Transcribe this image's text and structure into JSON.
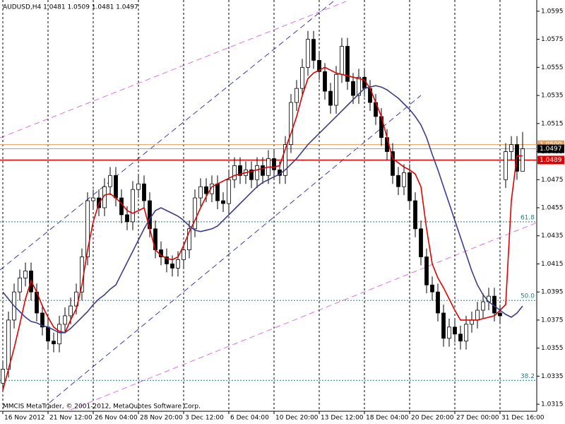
{
  "chart_data": {
    "type": "candlestick",
    "title": "AUDUSD,H4  1.0481 1.0509 1.0481 1.0497",
    "footer": "MMCIS MetaTrader, © 2001-2012, MetaQuotes Software Corp.",
    "categories": [
      "16 Nov 2012",
      null,
      null,
      null,
      null,
      null,
      null,
      null,
      "21 Nov 12:00",
      null,
      null,
      null,
      null,
      null,
      null,
      null,
      "26 Nov 04:00",
      null,
      null,
      null,
      null,
      null,
      null,
      null,
      "28 Nov 20:00",
      null,
      null,
      null,
      null,
      null,
      null,
      null,
      "3 Dec 12:00",
      null,
      null,
      null,
      null,
      null,
      null,
      null,
      "6 Dec 04:00",
      null,
      null,
      null,
      null,
      null,
      null,
      null,
      "10 Dec 20:00",
      null,
      null,
      null,
      null,
      null,
      null,
      null,
      "13 Dec 12:00",
      null,
      null,
      null,
      null,
      null,
      null,
      null,
      "18 Dec 04:00",
      null,
      null,
      null,
      null,
      null,
      null,
      null,
      "20 Dec 20:00",
      null,
      null,
      null,
      null,
      null,
      null,
      null,
      "27 Dec 00:00",
      null,
      null,
      null,
      null,
      null,
      null,
      null,
      "31 Dec 16:00",
      null,
      null,
      null,
      null
    ],
    "open": [
      1.033,
      1.034,
      1.0375,
      1.0395,
      1.0405,
      1.041,
      1.0395,
      1.038,
      1.037,
      1.036,
      1.0358,
      1.0372,
      1.0378,
      1.0385,
      1.0395,
      1.042,
      1.046,
      1.0462,
      1.0455,
      1.047,
      1.0478,
      1.0462,
      1.045,
      1.0445,
      1.0468,
      1.0472,
      1.046,
      1.044,
      1.0425,
      1.042,
      1.0415,
      1.0412,
      1.0418,
      1.0425,
      1.044,
      1.0462,
      1.047,
      1.0465,
      1.0472,
      1.046,
      1.0458,
      1.0475,
      1.0485,
      1.0478,
      1.0482,
      1.0475,
      1.0485,
      1.0478,
      1.049,
      1.0482,
      1.0478,
      1.05,
      1.053,
      1.054,
      1.0555,
      1.0575,
      1.056,
      1.0552,
      1.0538,
      1.0528,
      1.055,
      1.057,
      1.0545,
      1.0535,
      1.0548,
      1.054,
      1.053,
      1.052,
      1.0505,
      1.0495,
      1.0478,
      1.047,
      1.048,
      1.046,
      1.044,
      1.042,
      1.04,
      1.0395,
      1.038,
      1.0362,
      1.037,
      1.0365,
      1.036,
      1.0372,
      1.0375,
      1.0382,
      1.0388,
      1.0392,
      1.038,
      1.0475,
      1.0495,
      1.05,
      1.0481
    ],
    "high": [
      1.0346,
      1.0381,
      1.0401,
      1.0411,
      1.0416,
      1.0416,
      1.0401,
      1.0386,
      1.0376,
      1.0366,
      1.0378,
      1.0384,
      1.0391,
      1.0401,
      1.0426,
      1.0466,
      1.0468,
      1.0468,
      1.0476,
      1.0484,
      1.0484,
      1.0468,
      1.0456,
      1.0474,
      1.0478,
      1.0478,
      1.0466,
      1.0446,
      1.0431,
      1.0426,
      1.0421,
      1.0424,
      1.0431,
      1.0446,
      1.0468,
      1.0476,
      1.0476,
      1.0478,
      1.0478,
      1.0466,
      1.0481,
      1.0491,
      1.0491,
      1.0488,
      1.0488,
      1.0491,
      1.0491,
      1.0496,
      1.0496,
      1.0488,
      1.0506,
      1.0536,
      1.0546,
      1.0561,
      1.0581,
      1.0581,
      1.0566,
      1.0558,
      1.0544,
      1.0556,
      1.0576,
      1.0576,
      1.0551,
      1.0554,
      1.0554,
      1.0546,
      1.0536,
      1.0526,
      1.0511,
      1.0501,
      1.0484,
      1.0486,
      1.0486,
      1.0466,
      1.0446,
      1.0426,
      1.0406,
      1.0401,
      1.0386,
      1.0376,
      1.0376,
      1.0371,
      1.0378,
      1.0381,
      1.0388,
      1.0394,
      1.0398,
      1.0398,
      1.0386,
      1.0501,
      1.0506,
      1.0506,
      1.0509
    ],
    "low": [
      1.0324,
      1.0334,
      1.0369,
      1.0389,
      1.0399,
      1.0389,
      1.0374,
      1.0364,
      1.0354,
      1.0352,
      1.0352,
      1.0366,
      1.0372,
      1.0379,
      1.0389,
      1.0414,
      1.0454,
      1.0449,
      1.0449,
      1.0464,
      1.0456,
      1.0444,
      1.0439,
      1.0439,
      1.0462,
      1.0454,
      1.0434,
      1.0419,
      1.0414,
      1.0409,
      1.0406,
      1.0406,
      1.0412,
      1.0419,
      1.0434,
      1.0456,
      1.0459,
      1.0459,
      1.0454,
      1.0452,
      1.0452,
      1.0469,
      1.0472,
      1.0472,
      1.0469,
      1.0469,
      1.0472,
      1.0472,
      1.0476,
      1.0472,
      1.0472,
      1.0494,
      1.0524,
      1.0534,
      1.0549,
      1.0554,
      1.0546,
      1.0532,
      1.0522,
      1.0522,
      1.0544,
      1.0539,
      1.0529,
      1.0529,
      1.0534,
      1.0524,
      1.0514,
      1.0499,
      1.0489,
      1.0472,
      1.0464,
      1.0464,
      1.0454,
      1.0434,
      1.0414,
      1.0394,
      1.0389,
      1.0374,
      1.0356,
      1.0356,
      1.0359,
      1.0354,
      1.0354,
      1.0366,
      1.0369,
      1.0376,
      1.0382,
      1.0374,
      1.0372,
      1.0469,
      1.0489,
      1.0475,
      1.0481
    ],
    "close": [
      1.034,
      1.0375,
      1.0395,
      1.0405,
      1.041,
      1.0395,
      1.038,
      1.037,
      1.036,
      1.0358,
      1.0372,
      1.0378,
      1.0385,
      1.0395,
      1.042,
      1.046,
      1.0462,
      1.0455,
      1.047,
      1.0478,
      1.0462,
      1.045,
      1.0445,
      1.0468,
      1.0472,
      1.046,
      1.044,
      1.0425,
      1.042,
      1.0415,
      1.0412,
      1.0418,
      1.0425,
      1.044,
      1.0462,
      1.047,
      1.0465,
      1.0472,
      1.046,
      1.0458,
      1.0475,
      1.0485,
      1.0478,
      1.0482,
      1.0475,
      1.0485,
      1.0478,
      1.049,
      1.0482,
      1.0478,
      1.05,
      1.053,
      1.054,
      1.0555,
      1.0575,
      1.056,
      1.0552,
      1.0538,
      1.0528,
      1.055,
      1.057,
      1.0545,
      1.0535,
      1.0548,
      1.054,
      1.053,
      1.052,
      1.0505,
      1.0495,
      1.0478,
      1.047,
      1.048,
      1.046,
      1.044,
      1.042,
      1.04,
      1.0395,
      1.038,
      1.0362,
      1.037,
      1.0365,
      1.036,
      1.0372,
      1.0375,
      1.0382,
      1.0388,
      1.0392,
      1.038,
      1.0378,
      1.0495,
      1.05,
      1.0481,
      1.0497
    ],
    "lines": [
      {
        "color": "#e00000",
        "values": [
          1.0325,
          1.034,
          1.0355,
          1.0372,
          1.039,
          1.0403,
          1.0395,
          1.0385,
          1.0377,
          1.037,
          1.0367,
          1.0366,
          1.0375,
          1.0383,
          1.04,
          1.0425,
          1.0445,
          1.0458,
          1.0464,
          1.0465,
          1.0462,
          1.0458,
          1.0453,
          1.0451,
          1.0453,
          1.0455,
          1.044,
          1.0425,
          1.0421,
          1.0419,
          1.0418,
          1.042,
          1.0428,
          1.0438,
          1.0446,
          1.0455,
          1.0463,
          1.047,
          1.0472,
          1.0474,
          1.0476,
          1.0478,
          1.0479,
          1.048,
          1.0481,
          1.0482,
          1.0483,
          1.0484,
          1.0484,
          1.0485,
          1.0497,
          1.0508,
          1.052,
          1.0535,
          1.0547,
          1.0551,
          1.0553,
          1.0555,
          1.0553,
          1.0551,
          1.055,
          1.0549,
          1.0548,
          1.0547,
          1.0546,
          1.054,
          1.053,
          1.052,
          1.0505,
          1.049,
          1.0487,
          1.0484,
          1.0482,
          1.0479,
          1.047,
          1.044,
          1.0415,
          1.0405,
          1.0398,
          1.039,
          1.0382,
          1.0375,
          1.0375,
          1.0375,
          1.0375,
          1.0376,
          1.0377,
          1.0378,
          1.0382,
          1.0386,
          1.046,
          1.0492,
          1.0492
        ]
      },
      {
        "color": "#3c3c8c",
        "values": [
          1.0395,
          1.039,
          1.0385,
          1.0381,
          1.0377,
          1.0374,
          1.0373,
          1.0371,
          1.037,
          1.0368,
          1.0366,
          1.0366,
          1.0369,
          1.0373,
          1.0377,
          1.0381,
          1.0386,
          1.039,
          1.0393,
          1.0397,
          1.04,
          1.0408,
          1.0416,
          1.0424,
          1.0432,
          1.044,
          1.0447,
          1.0453,
          1.0455,
          1.0453,
          1.0451,
          1.0449,
          1.0446,
          1.0442,
          1.0439,
          1.0438,
          1.0439,
          1.044,
          1.0442,
          1.0446,
          1.045,
          1.0454,
          1.0458,
          1.0462,
          1.0466,
          1.047,
          1.0473,
          1.0475,
          1.0477,
          1.0479,
          1.0482,
          1.0486,
          1.049,
          1.0495,
          1.05,
          1.0504,
          1.0508,
          1.0512,
          1.0516,
          1.052,
          1.0524,
          1.0528,
          1.0532,
          1.0536,
          1.054,
          1.0541,
          1.0542,
          1.0541,
          1.0539,
          1.0536,
          1.0533,
          1.0529,
          1.0525,
          1.052,
          1.0514,
          1.0505,
          1.0493,
          1.0482,
          1.047,
          1.0458,
          1.0446,
          1.0434,
          1.0422,
          1.041,
          1.04,
          1.0393,
          1.0388,
          1.0385,
          1.0382,
          1.0379,
          1.0377,
          1.038,
          1.0385
        ]
      }
    ],
    "fib_levels": [
      {
        "label": "61.8",
        "value": 1.0445
      },
      {
        "label": "50.0",
        "value": 1.0389
      },
      {
        "label": "38.2",
        "value": 1.0332
      }
    ],
    "price_lines": [
      {
        "label": "1.0500",
        "value": 1.05,
        "color": "#e0a060"
      },
      {
        "label": "1.0497",
        "value": 1.0497,
        "color": "#a0a0a0"
      },
      {
        "label": "1.0489",
        "value": 1.0489,
        "color": "#e00000"
      }
    ],
    "ylim": [
      1.031,
      1.0603
    ],
    "yticks": [
      1.0315,
      1.0335,
      1.0355,
      1.0375,
      1.0395,
      1.0415,
      1.0435,
      1.0455,
      1.0475,
      1.0495,
      1.0515,
      1.0535,
      1.0555,
      1.0575,
      1.0595
    ],
    "bull_color": "#ffffff",
    "bear_color": "#000000"
  }
}
